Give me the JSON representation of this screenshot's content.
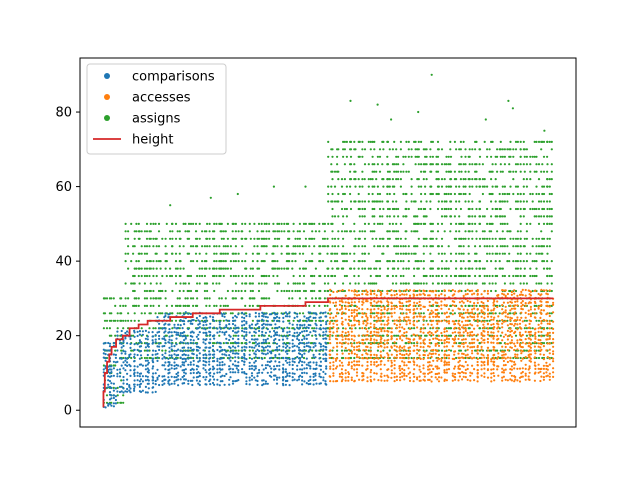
{
  "chart_data": {
    "type": "scatter",
    "title": "",
    "xlabel": "",
    "ylabel": "",
    "x_ticks_shown": false,
    "ylim": [
      -4.5,
      94.5
    ],
    "yticks": [
      0,
      20,
      40,
      60,
      80
    ],
    "xlim": [
      -0.05,
      1.05
    ],
    "legend_position": "top-left",
    "series": [
      {
        "name": "comparisons",
        "kind": "scatter",
        "color": "#1f77b4",
        "ranges": [
          {
            "x0": 0.0,
            "x1": 0.03,
            "ymin": 1,
            "ymax": 18
          },
          {
            "x0": 0.03,
            "x1": 0.12,
            "ymin": 5,
            "ymax": 21
          },
          {
            "x0": 0.12,
            "x1": 0.5,
            "ymin": 7,
            "ymax": 26
          }
        ]
      },
      {
        "name": "accesses",
        "kind": "scatter",
        "color": "#ff7f0e",
        "ranges": [
          {
            "x0": 0.5,
            "x1": 1.0,
            "ymin": 8,
            "ymax": 32
          }
        ]
      },
      {
        "name": "assigns",
        "kind": "scatter",
        "color": "#2ca02c",
        "ranges": [
          {
            "x0": 0.0,
            "x1": 0.05,
            "ymin": 2,
            "ymax": 30
          },
          {
            "x0": 0.05,
            "x1": 0.5,
            "ymin": 14,
            "ymax": 50
          },
          {
            "x0": 0.5,
            "x1": 1.0,
            "ymin": 14,
            "ymax": 72
          }
        ],
        "outliers": [
          {
            "x": 0.15,
            "y": 55
          },
          {
            "x": 0.24,
            "y": 57
          },
          {
            "x": 0.3,
            "y": 58
          },
          {
            "x": 0.38,
            "y": 60
          },
          {
            "x": 0.45,
            "y": 60
          },
          {
            "x": 0.55,
            "y": 83
          },
          {
            "x": 0.61,
            "y": 82
          },
          {
            "x": 0.7,
            "y": 80
          },
          {
            "x": 0.73,
            "y": 90
          },
          {
            "x": 0.9,
            "y": 83
          },
          {
            "x": 0.91,
            "y": 81
          },
          {
            "x": 0.98,
            "y": 75
          },
          {
            "x": 0.64,
            "y": 78
          },
          {
            "x": 0.85,
            "y": 78
          }
        ]
      },
      {
        "name": "height",
        "kind": "line",
        "color": "#d62728",
        "x": [
          0.0,
          0.002,
          0.005,
          0.01,
          0.015,
          0.02,
          0.03,
          0.045,
          0.06,
          0.08,
          0.1,
          0.15,
          0.2,
          0.26,
          0.35,
          0.45,
          0.5,
          0.8,
          1.0
        ],
        "y": [
          1,
          5,
          10,
          13,
          15,
          17,
          19,
          20,
          22,
          23,
          24,
          25,
          26,
          27,
          28,
          29,
          30,
          30,
          30
        ]
      }
    ]
  }
}
